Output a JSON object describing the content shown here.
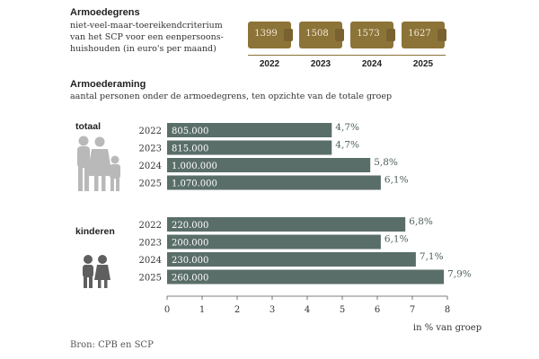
{
  "header": {
    "title": "Armoedegrens",
    "subtitle_lines": [
      "niet-veel-maar-toereikendcriterium",
      "van het SCP voor een eenpersoons-",
      "huishouden (in euro's per maand)"
    ]
  },
  "wallets": [
    {
      "year": "2022",
      "amount": "1399"
    },
    {
      "year": "2023",
      "amount": "1508"
    },
    {
      "year": "2024",
      "amount": "1573"
    },
    {
      "year": "2025",
      "amount": "1627"
    }
  ],
  "section2": {
    "title": "Armoederaming",
    "subtitle": "aantal personen onder de armoedegrens, ten opzichte van de totale groep"
  },
  "colors": {
    "bar": "#5a6e69",
    "wallet": "#8c7338",
    "pct_text": "#4e615c",
    "divider": "#8c7338"
  },
  "icons": {
    "totaal": "family-icon",
    "kinderen": "children-icon"
  },
  "chart_data": {
    "type": "bar",
    "orientation": "horizontal",
    "xlabel": "in % van groep",
    "xlim": [
      0,
      8
    ],
    "x_ticks": [
      "0",
      "1",
      "2",
      "3",
      "4",
      "5",
      "6",
      "7",
      "8"
    ],
    "groups": [
      {
        "name": "totaal",
        "categories": [
          "2022",
          "2023",
          "2024",
          "2025"
        ],
        "values": [
          4.7,
          4.7,
          5.8,
          6.1
        ],
        "value_labels": [
          "4,7%",
          "4,7%",
          "5,8%",
          "6,1%"
        ],
        "counts": [
          "805.000",
          "815.000",
          "1.000.000",
          "1.070.000"
        ]
      },
      {
        "name": "kinderen",
        "categories": [
          "2022",
          "2023",
          "2024",
          "2025"
        ],
        "values": [
          6.8,
          6.1,
          7.1,
          7.9
        ],
        "value_labels": [
          "6,8%",
          "6,1%",
          "7,1%",
          "7,9%"
        ],
        "counts": [
          "220.000",
          "200.000",
          "230.000",
          "260.000"
        ]
      }
    ]
  },
  "source": "Bron: CPB en SCP"
}
